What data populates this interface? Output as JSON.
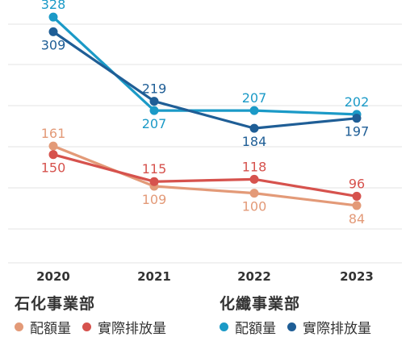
{
  "chart_data": {
    "type": "line",
    "categories": [
      "2020",
      "2021",
      "2022",
      "2023"
    ],
    "ylim": [
      0,
      350
    ],
    "grid": true,
    "series": [
      {
        "name": "配額量",
        "group": "化纖事業部",
        "color": "#1b9ac7",
        "values": [
          328,
          207,
          207,
          202
        ],
        "label_pos": [
          "above",
          "below",
          "above",
          "above"
        ]
      },
      {
        "name": "實際排放量",
        "group": "化纖事業部",
        "color": "#1f5e96",
        "values": [
          309,
          219,
          184,
          197
        ],
        "label_pos": [
          "below",
          "above",
          "below",
          "below"
        ]
      },
      {
        "name": "配額量",
        "group": "石化事業部",
        "color": "#e39a78",
        "values": [
          161,
          109,
          100,
          84
        ],
        "label_pos": [
          "above",
          "below",
          "below",
          "below"
        ]
      },
      {
        "name": "實際排放量",
        "group": "石化事業部",
        "color": "#d6524d",
        "values": [
          150,
          115,
          118,
          96
        ],
        "label_pos": [
          "below",
          "above",
          "above",
          "above"
        ]
      }
    ]
  },
  "legend": {
    "petrochem": {
      "title": "石化事業部",
      "quota": "配額量",
      "actual": "實際排放量"
    },
    "fiber": {
      "title": "化纖事業部",
      "quota": "配額量",
      "actual": "實際排放量"
    }
  },
  "colors": {
    "grid": "#e3e3e3",
    "axis_text": "#333333"
  }
}
